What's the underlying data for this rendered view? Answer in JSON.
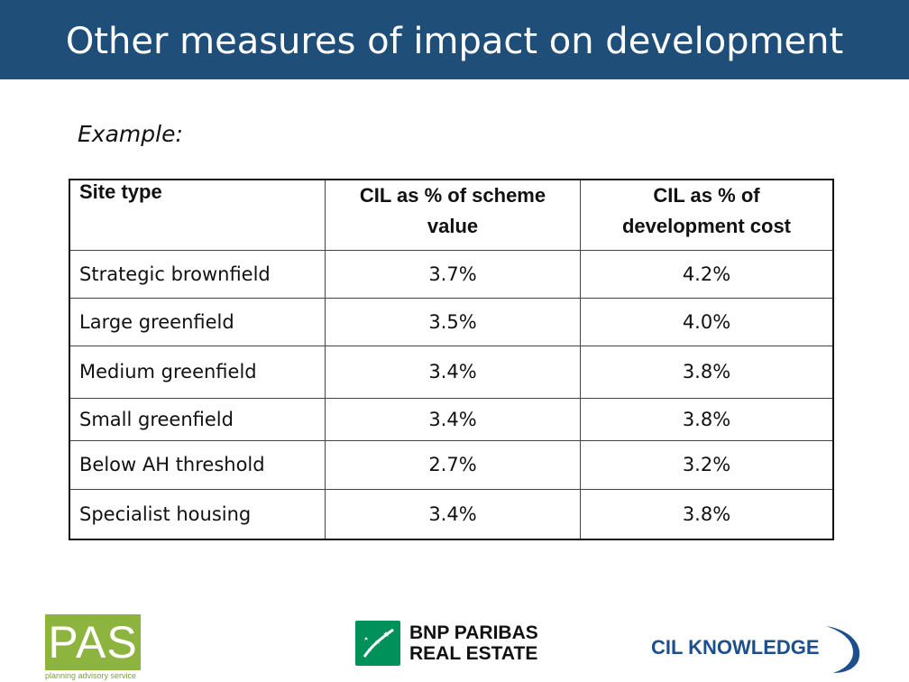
{
  "header": {
    "title": "Other measures of impact on development"
  },
  "subtitle": "Example:",
  "table": {
    "headers": [
      "Site type",
      "CIL as % of scheme value",
      "CIL as % of development cost"
    ],
    "rows": [
      {
        "site_type": "Strategic brownfield",
        "scheme_value": "3.7%",
        "dev_cost": "4.2%"
      },
      {
        "site_type": "Large greenfield",
        "scheme_value": "3.5%",
        "dev_cost": "4.0%"
      },
      {
        "site_type": "Medium greenfield",
        "scheme_value": "3.4%",
        "dev_cost": "3.8%"
      },
      {
        "site_type": "Small greenfield",
        "scheme_value": "3.4%",
        "dev_cost": "3.8%"
      },
      {
        "site_type": "Below AH threshold",
        "scheme_value": "2.7%",
        "dev_cost": "3.2%"
      },
      {
        "site_type": "Specialist housing",
        "scheme_value": "3.4%",
        "dev_cost": "3.8%"
      }
    ]
  },
  "logos": {
    "pas": {
      "mark": "PAS",
      "tagline": "planning advisory service",
      "color": "#8db43e"
    },
    "bnp": {
      "line1": "BNP PARIBAS",
      "line2": "REAL ESTATE",
      "color": "#00915a"
    },
    "cil": {
      "text": "CIL KNOWLEDGE",
      "color": "#1d4f8c"
    }
  },
  "colors": {
    "title_bar": "#1f4e79"
  }
}
